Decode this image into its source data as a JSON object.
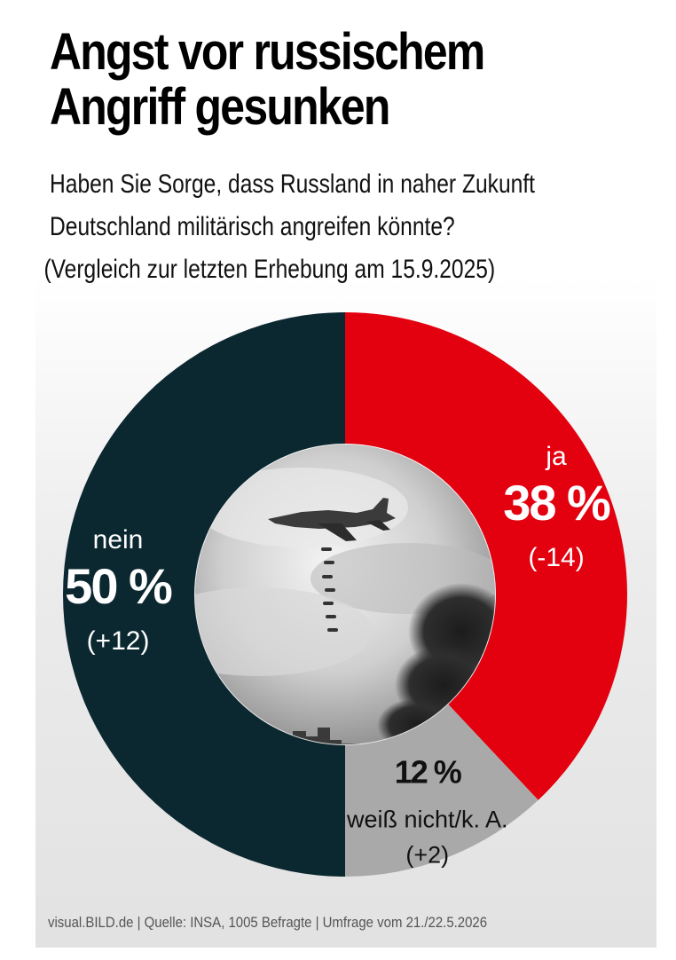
{
  "title_line1": "Angst vor russischem",
  "title_line2": "Angriff gesunken",
  "subtitle_line1": "Haben Sie Sorge, dass Russland in naher Zukunft",
  "subtitle_line2": "Deutschland militärisch angreifen könnte?",
  "subtitle_line3": "(Vergleich zur letzten Erhebung am 15.9.2025)",
  "footer": "visual.BILD.de | Quelle: INSA, 1005 Befragte | Umfrage vom 21./22.5.2026",
  "chart_data": {
    "type": "pie",
    "style": "donut",
    "start": "top",
    "direction": "clockwise",
    "slices": [
      {
        "label": "ja",
        "value": 38,
        "value_label": "38 %",
        "change": "(-14)",
        "color": "#e3000f"
      },
      {
        "label": "weiß nicht/k. A.",
        "value": 12,
        "value_label": "12 %",
        "change": "(+2)",
        "color": "#a9a9a9"
      },
      {
        "label": "nein",
        "value": 50,
        "value_label": "50 %",
        "change": "(+12)",
        "color": "#0b2730"
      }
    ]
  }
}
